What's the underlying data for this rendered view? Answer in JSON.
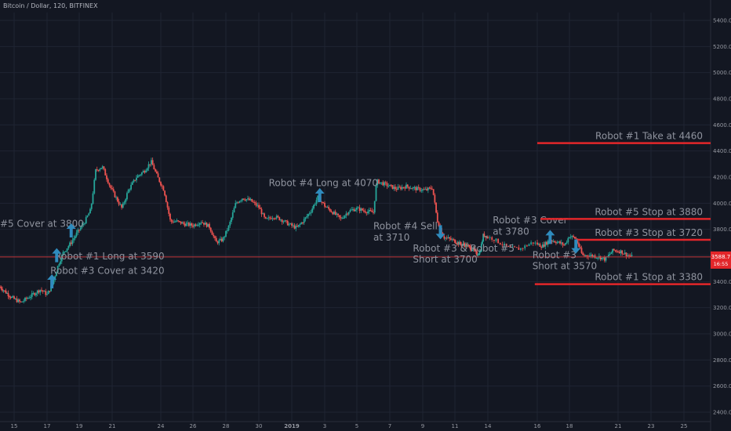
{
  "header": {
    "title": "Bitcoin / Dollar, 120, BITFINEX"
  },
  "colors": {
    "background": "#131722",
    "grid": "#1f2433",
    "axis_text": "#9598a1",
    "up": "#26a69a",
    "down": "#ef5350",
    "arrow": "#2f8bbd",
    "annotation_text": "#8f939e",
    "stop_line": "#e3262a",
    "price_line": "#c2363a",
    "price_label_bg": "#e3262a"
  },
  "price_label": {
    "price": "3588.7",
    "countdown": "16:55"
  },
  "chart_data": {
    "type": "candlestick",
    "title": "Bitcoin / Dollar, 120, BITFINEX",
    "ylim": [
      2300,
      5650
    ],
    "yticks": [
      "5400.0",
      "5200.0",
      "5000.0",
      "4800.0",
      "4600.0",
      "4400.0",
      "4200.0",
      "4000.0",
      "3800.0",
      "3600.0",
      "3400.0",
      "3200.0",
      "3000.0",
      "2800.0",
      "2600.0",
      "2400.0"
    ],
    "xticks": [
      "15",
      "17",
      "19",
      "21",
      "24",
      "26",
      "28",
      "30",
      "2019",
      "3",
      "5",
      "7",
      "9",
      "11",
      "14",
      "16",
      "18",
      "21",
      "23",
      "25"
    ],
    "current_price": 3588.7,
    "price_path": [
      {
        "day": 14.0,
        "price": 3360
      },
      {
        "day": 14.8,
        "price": 3280
      },
      {
        "day": 15.4,
        "price": 3240
      },
      {
        "day": 16.0,
        "price": 3290
      },
      {
        "day": 16.6,
        "price": 3340
      },
      {
        "day": 17.0,
        "price": 3300
      },
      {
        "day": 17.3,
        "price": 3370
      },
      {
        "day": 17.7,
        "price": 3530
      },
      {
        "day": 18.0,
        "price": 3620
      },
      {
        "day": 18.5,
        "price": 3700
      },
      {
        "day": 18.9,
        "price": 3780
      },
      {
        "day": 19.3,
        "price": 3850
      },
      {
        "day": 19.7,
        "price": 3950
      },
      {
        "day": 20.0,
        "price": 4250
      },
      {
        "day": 20.4,
        "price": 4280
      },
      {
        "day": 20.9,
        "price": 4120
      },
      {
        "day": 21.2,
        "price": 4050
      },
      {
        "day": 21.6,
        "price": 3960
      },
      {
        "day": 22.0,
        "price": 4100
      },
      {
        "day": 22.5,
        "price": 4200
      },
      {
        "day": 23.0,
        "price": 4250
      },
      {
        "day": 23.4,
        "price": 4320
      },
      {
        "day": 23.8,
        "price": 4200
      },
      {
        "day": 24.2,
        "price": 4100
      },
      {
        "day": 24.6,
        "price": 3860
      },
      {
        "day": 25.0,
        "price": 3860
      },
      {
        "day": 25.5,
        "price": 3840
      },
      {
        "day": 26.0,
        "price": 3830
      },
      {
        "day": 26.5,
        "price": 3860
      },
      {
        "day": 27.0,
        "price": 3820
      },
      {
        "day": 27.4,
        "price": 3700
      },
      {
        "day": 27.8,
        "price": 3720
      },
      {
        "day": 28.2,
        "price": 3830
      },
      {
        "day": 28.6,
        "price": 4000
      },
      {
        "day": 29.0,
        "price": 4040
      },
      {
        "day": 29.5,
        "price": 4020
      },
      {
        "day": 30.0,
        "price": 3970
      },
      {
        "day": 30.4,
        "price": 3870
      },
      {
        "day": 30.9,
        "price": 3900
      },
      {
        "day": 31.3,
        "price": 3880
      },
      {
        "day": 31.8,
        "price": 3840
      },
      {
        "day": 32.3,
        "price": 3810
      },
      {
        "day": 32.8,
        "price": 3880
      },
      {
        "day": 33.2,
        "price": 3950
      },
      {
        "day": 33.6,
        "price": 4050
      },
      {
        "day": 34.0,
        "price": 3980
      },
      {
        "day": 34.5,
        "price": 3930
      },
      {
        "day": 35.0,
        "price": 3880
      },
      {
        "day": 35.5,
        "price": 3940
      },
      {
        "day": 36.0,
        "price": 3960
      },
      {
        "day": 36.5,
        "price": 3940
      },
      {
        "day": 37.0,
        "price": 3930
      },
      {
        "day": 37.2,
        "price": 4170
      },
      {
        "day": 37.8,
        "price": 4140
      },
      {
        "day": 38.4,
        "price": 4110
      },
      {
        "day": 39.0,
        "price": 4130
      },
      {
        "day": 39.6,
        "price": 4110
      },
      {
        "day": 40.2,
        "price": 4100
      },
      {
        "day": 40.6,
        "price": 4120
      },
      {
        "day": 40.9,
        "price": 3870
      },
      {
        "day": 41.3,
        "price": 3740
      },
      {
        "day": 41.8,
        "price": 3720
      },
      {
        "day": 42.4,
        "price": 3690
      },
      {
        "day": 43.0,
        "price": 3680
      },
      {
        "day": 43.6,
        "price": 3650
      },
      {
        "day": 44.0,
        "price": 3610
      },
      {
        "day": 44.3,
        "price": 3630
      },
      {
        "day": 44.6,
        "price": 3760
      },
      {
        "day": 45.2,
        "price": 3730
      },
      {
        "day": 45.8,
        "price": 3660
      },
      {
        "day": 46.3,
        "price": 3650
      },
      {
        "day": 46.8,
        "price": 3700
      },
      {
        "day": 47.3,
        "price": 3670
      },
      {
        "day": 47.8,
        "price": 3720
      },
      {
        "day": 48.3,
        "price": 3700
      },
      {
        "day": 48.7,
        "price": 3680
      },
      {
        "day": 49.0,
        "price": 3750
      },
      {
        "day": 49.4,
        "price": 3730
      },
      {
        "day": 49.8,
        "price": 3600
      },
      {
        "day": 50.3,
        "price": 3600
      },
      {
        "day": 50.8,
        "price": 3590
      },
      {
        "day": 51.2,
        "price": 3570
      },
      {
        "day": 51.7,
        "price": 3640
      },
      {
        "day": 52.2,
        "price": 3630
      },
      {
        "day": 52.6,
        "price": 3600
      },
      {
        "day": 52.9,
        "price": 3588.7
      }
    ],
    "annotations": [
      {
        "type": "label",
        "text": "#5 Cover at 3800",
        "day": 11.6,
        "price": 3820
      },
      {
        "type": "label",
        "text": "Robot #1 Long at 3590",
        "day": 17.5,
        "price": 3570
      },
      {
        "type": "label",
        "text": "Robot #3 Cover at 3420",
        "day": 17.2,
        "price": 3460
      },
      {
        "type": "label",
        "text": "Robot #4 Long at 4070",
        "day": 30.6,
        "price": 4130
      },
      {
        "type": "label",
        "text": "Robot #4 Sell",
        "day": 37.0,
        "price": 3800
      },
      {
        "type": "label",
        "text": "at 3710",
        "day": 37.0,
        "price": 3715
      },
      {
        "type": "label",
        "text": "Robot #3 & Robot #5",
        "day": 39.4,
        "price": 3630
      },
      {
        "type": "label",
        "text": "Short at 3700",
        "day": 39.4,
        "price": 3545
      },
      {
        "type": "label",
        "text": "Robot #3 Cover",
        "day": 45.2,
        "price": 3845
      },
      {
        "type": "label",
        "text": "at 3780",
        "day": 45.2,
        "price": 3760
      },
      {
        "type": "label",
        "text": "Robot #3",
        "day": 46.8,
        "price": 3580
      },
      {
        "type": "label",
        "text": "Short at 3570",
        "day": 46.8,
        "price": 3495
      },
      {
        "type": "level",
        "text": "Robot #1 Take at 4460",
        "price": 4460,
        "from_day": 47.0
      },
      {
        "type": "level",
        "text": "Robot #5 Stop at 3880",
        "price": 3880,
        "from_day": 47.2
      },
      {
        "type": "level",
        "text": "Robot #3 Stop at 3720",
        "price": 3720,
        "from_day": 49.5
      },
      {
        "type": "level",
        "text": "Robot #1 Stop at 3380",
        "price": 3380,
        "from_day": 46.9
      },
      {
        "type": "arrow",
        "direction": "up",
        "day": 17.3,
        "price": 3390
      },
      {
        "type": "arrow",
        "direction": "up",
        "day": 17.6,
        "price": 3590
      },
      {
        "type": "arrow",
        "direction": "up",
        "day": 18.5,
        "price": 3780
      },
      {
        "type": "arrow",
        "direction": "up",
        "day": 33.7,
        "price": 4050
      },
      {
        "type": "arrow",
        "direction": "down",
        "day": 41.1,
        "price": 3790
      },
      {
        "type": "arrow",
        "direction": "up",
        "day": 47.8,
        "price": 3730
      },
      {
        "type": "arrow",
        "direction": "down",
        "day": 49.4,
        "price": 3680
      }
    ]
  }
}
